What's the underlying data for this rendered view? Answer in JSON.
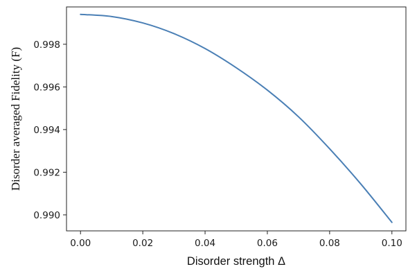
{
  "chart_data": {
    "type": "line",
    "title": "",
    "xlabel": "Disorder strength Δ",
    "ylabel": "Disorder averaged Fidelity (F)",
    "xlim": [
      -0.0045,
      0.1045
    ],
    "ylim": [
      0.98925,
      0.99975
    ],
    "xticks": [
      0.0,
      0.02,
      0.04,
      0.06,
      0.08,
      0.1
    ],
    "xtick_labels": [
      "0.00",
      "0.02",
      "0.04",
      "0.06",
      "0.08",
      "0.10"
    ],
    "yticks": [
      0.99,
      0.992,
      0.994,
      0.996,
      0.998
    ],
    "ytick_labels": [
      "0.990",
      "0.992",
      "0.994",
      "0.996",
      "0.998"
    ],
    "grid": false,
    "legend": false,
    "series": [
      {
        "color": "#4a7fb5",
        "x": [
          0.0,
          0.01,
          0.02,
          0.03,
          0.04,
          0.05,
          0.06,
          0.07,
          0.08,
          0.09,
          0.1
        ],
        "y": [
          0.9994,
          0.9993,
          0.999,
          0.9985,
          0.9978,
          0.9969,
          0.99585,
          0.9946,
          0.9931,
          0.99145,
          0.98965
        ]
      }
    ]
  }
}
